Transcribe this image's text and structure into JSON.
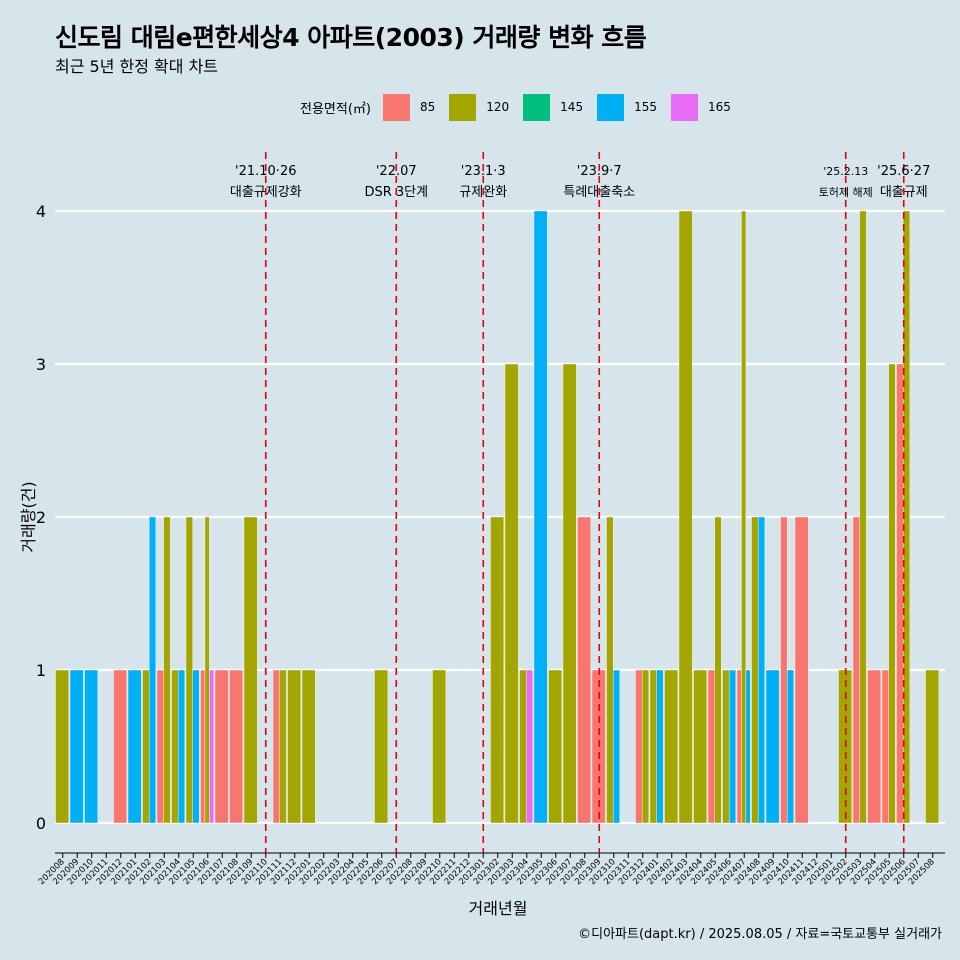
{
  "title": "신도림 대림e편한세상4 아파트(2003) 거래량 변화 흐름",
  "subtitle": "최근 5년 한정 확대 차트",
  "caption": "©디아파트(dapt.kr) / 2025.08.05 / 자료=국토교통부 실거래가",
  "legend": {
    "title": "전용면적(㎡)",
    "items": [
      {
        "label": "85",
        "color": "#f8766d"
      },
      {
        "label": "120",
        "color": "#a3a500"
      },
      {
        "label": "145",
        "color": "#00bf7d"
      },
      {
        "label": "155",
        "color": "#00b0f6"
      },
      {
        "label": "165",
        "color": "#e76bf3"
      }
    ]
  },
  "chart_data": {
    "type": "bar",
    "xlabel": "거래년월",
    "ylabel": "거래량(건)",
    "ylim": [
      0,
      4
    ],
    "yticks": [
      0,
      1,
      2,
      3,
      4
    ],
    "grid": true,
    "legend_position": "top",
    "categories": [
      "202008",
      "202009",
      "202010",
      "202011",
      "202012",
      "202101",
      "202102",
      "202103",
      "202104",
      "202105",
      "202106",
      "202107",
      "202108",
      "202109",
      "202110",
      "202111",
      "202112",
      "202201",
      "202202",
      "202203",
      "202204",
      "202205",
      "202206",
      "202207",
      "202208",
      "202209",
      "202210",
      "202211",
      "202212",
      "202301",
      "202302",
      "202303",
      "202304",
      "202305",
      "202306",
      "202307",
      "202308",
      "202309",
      "202310",
      "202311",
      "202312",
      "202401",
      "202402",
      "202403",
      "202404",
      "202405",
      "202406",
      "202407",
      "202408",
      "202409",
      "202410",
      "202411",
      "202412",
      "202501",
      "202502",
      "202503",
      "202504",
      "202505",
      "202506",
      "202507",
      "202508"
    ],
    "series": [
      {
        "name": "85",
        "color": "#f8766d",
        "values": {
          "202012": 1,
          "202103": 1,
          "202106": 1,
          "202107": 1,
          "202108": 1,
          "202111": 1,
          "202308": 2,
          "202309": 1,
          "202312": 1,
          "202405": 1,
          "202407": 1,
          "202410": 2,
          "202411": 2,
          "202503": 2,
          "202504": 1,
          "202505": 1,
          "202506": 3
        }
      },
      {
        "name": "120",
        "color": "#a3a500",
        "values": {
          "202008": 1,
          "202102": 1,
          "202103": 2,
          "202104": 1,
          "202105": 2,
          "202106": 2,
          "202109": 2,
          "202111": 1,
          "202112": 1,
          "202201": 1,
          "202206": 1,
          "202210": 1,
          "202302": 2,
          "202303": 3,
          "202304": 1,
          "202306": 1,
          "202307": 3,
          "202310": 2,
          "202312": 1,
          "202401": 1,
          "202402": 1,
          "202403": 4,
          "202404": 1,
          "202405": 2,
          "202406": 1,
          "202407": 4,
          "202408": 2,
          "202502": 1,
          "202503": 4,
          "202505": 3,
          "202506": 4,
          "202508": 1
        }
      },
      {
        "name": "145",
        "color": "#00bf7d",
        "values": {}
      },
      {
        "name": "155",
        "color": "#00b0f6",
        "values": {
          "202009": 1,
          "202010": 1,
          "202101": 1,
          "202102": 2,
          "202104": 1,
          "202105": 1,
          "202305": 4,
          "202310": 1,
          "202401": 1,
          "202406": 1,
          "202407": 1,
          "202408": 2,
          "202409": 1,
          "202410": 1
        }
      },
      {
        "name": "165",
        "color": "#e76bf3",
        "values": {
          "202106": 1,
          "202304": 1
        }
      }
    ],
    "annotations": [
      {
        "at": "202110",
        "line1": "'21.10·26",
        "line2": "대출규제강화"
      },
      {
        "at": "202207",
        "line1": "'22.07",
        "line2": "DSR 3단계"
      },
      {
        "at": "202301",
        "line1": "'23.1·3",
        "line2": "규제완화"
      },
      {
        "at": "202309",
        "line1": "'23.9·7",
        "line2": "특례대출축소"
      },
      {
        "at": "202502",
        "line1": "'25.2.13",
        "line2": "토허제 해제"
      },
      {
        "at": "202506",
        "line1": "'25.6·27",
        "line2": "대출규제"
      }
    ]
  }
}
